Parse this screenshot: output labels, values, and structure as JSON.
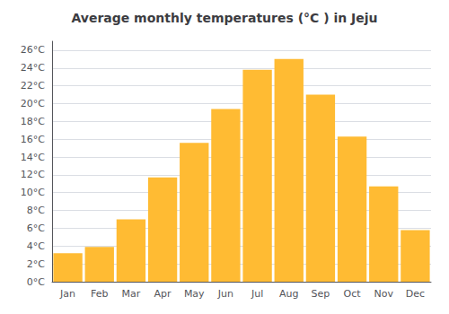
{
  "chart_data": {
    "type": "bar",
    "title": "Average monthly temperatures (°C ) in Jeju",
    "categories": [
      "Jan",
      "Feb",
      "Mar",
      "Apr",
      "May",
      "Jun",
      "Jul",
      "Aug",
      "Sep",
      "Oct",
      "Nov",
      "Dec"
    ],
    "values": [
      3.2,
      3.9,
      7.0,
      11.7,
      15.6,
      19.4,
      23.8,
      25.0,
      21.0,
      16.3,
      10.7,
      5.8
    ],
    "color": "#FFBB33",
    "ylim": [
      0,
      27
    ],
    "yticks": [
      {
        "value": 0,
        "label": "0°C"
      },
      {
        "value": 2,
        "label": "2°C"
      },
      {
        "value": 4,
        "label": "4°C"
      },
      {
        "value": 6,
        "label": "6°C"
      },
      {
        "value": 8,
        "label": "8°C"
      },
      {
        "value": 10,
        "label": "10°C"
      },
      {
        "value": 12,
        "label": "12°C"
      },
      {
        "value": 14,
        "label": "14°C"
      },
      {
        "value": 16,
        "label": "16°C"
      },
      {
        "value": 18,
        "label": "18°C"
      },
      {
        "value": 20,
        "label": "20°C"
      },
      {
        "value": 22,
        "label": "22°C"
      },
      {
        "value": 24,
        "label": "24°C"
      },
      {
        "value": 26,
        "label": "26°C"
      }
    ],
    "grid": true
  }
}
